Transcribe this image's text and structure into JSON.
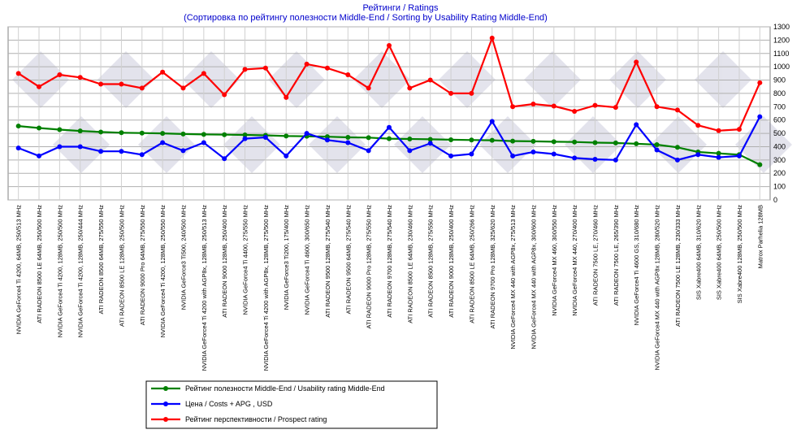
{
  "chart_data": {
    "type": "line",
    "title": "Рейтинги / Ratings",
    "subtitle": "(Сортировка по рейтингу полезности Middle-End / Sorting by Usability Rating Middle-End)",
    "ylim": [
      0,
      1300
    ],
    "yticks": [
      0,
      100,
      200,
      300,
      400,
      500,
      600,
      700,
      800,
      900,
      1000,
      1100,
      1200,
      1300
    ],
    "grid": true,
    "legend_position": "bottom-center",
    "categories": [
      "NVIDIA GeForce4 Ti 4200, 64MB, 250/513 MHz",
      "ATI RADEON 8500 LE 64MB, 250/500 MHz",
      "NVIDIA GeForce4 Ti 4200, 128MB, 250/500 MHz",
      "NVIDIA GeForce4 Ti 4200, 128MB, 250/444 MHz",
      "ATI RADEON 8500 64MB, 275/550 MHz",
      "ATI RADEON 8500 LE 128MB, 250/500 MHz",
      "ATI RADEON 9000 Pro 64MB, 275/550 MHz",
      "NVIDIA GeForce4 Ti 4200, 128MB, 250/550 MHz",
      "NVIDIA GeForce3 Ti500, 240/500 MHz",
      "NVIDIA GeForce4 Ti 4200 with AGP8x, 128MB, 250/513 MHz",
      "ATI RADEON 9000 128MB, 250/400 MHz",
      "NVIDIA GeForce4 Ti 4400, 275/550 MHz",
      "NVIDIA GeForce4 Ti 4200 with AGP8x, 128MB, 275/500 MHz",
      "NVIDIA GeForce3 Ti200, 175/400 MHz",
      "NVIDIA GeForce4 Ti 4600, 300/650 MHz",
      "ATI RADEON 9500 128MB, 275/540 MHz",
      "ATI RADEON 9500 64MB, 275/540 MHz",
      "ATI RADEON 9000 Pro 128MB, 275/550 MHz",
      "ATI RADEON 9700 128MB, 275/540 MHz",
      "ATI RADEON 8500 LE 64MB, 230/460 MHz",
      "ATI RADEON 8500 128MB, 275/550 MHz",
      "ATI RADEON 9000 128MB, 250/400 MHz",
      "ATI RADEON 8500 LE 64MB, 250/266 MHz",
      "ATI RADEON 9700 Pro 128MB, 325/620 MHz",
      "NVIDIA GeForce4 MX 440 with AGP8x, 275/513 MHz",
      "NVIDIA GeForce4 MX 440 with AGP8x, 300/600 MHz",
      "NVIDIA GeForce4 MX 460, 300/550 MHz",
      "NVIDIA GeForce4 MX 440, 270/400 MHz",
      "ATI RADEON 7500 LE, 270/460 MHz",
      "ATI RADEON 7500 LE, 265/390 MHz",
      "NVIDIA GeForce4 Ti 4600 GS, 310/680 MHz",
      "NVIDIA GeForce4 MX 440 with AGP8x 128MB, 280/520 MHz",
      "ATI RADEON 7500 LE 128MB, 230/333 MHz",
      "SIS Xabre400 64MB, 310/620 MHz",
      "SIS Xabre400 64MB, 250/500 MHz",
      "SIS Xabre400 128MB, 250/500 MHz",
      "Matrox Parhelia 128MB"
    ],
    "series": [
      {
        "name": "Рейтинг полезности Middle-End / Usability rating Middle-End",
        "color": "#008000",
        "values": [
          555,
          540,
          528,
          518,
          510,
          505,
          502,
          500,
          495,
          492,
          490,
          488,
          485,
          480,
          478,
          475,
          470,
          468,
          460,
          458,
          455,
          452,
          450,
          448,
          442,
          440,
          437,
          435,
          430,
          428,
          422,
          415,
          395,
          360,
          350,
          340,
          265
        ]
      },
      {
        "name": "Цена / Costs + APG , USD",
        "color": "#0000ff",
        "values": [
          390,
          330,
          400,
          400,
          365,
          365,
          340,
          430,
          370,
          430,
          310,
          460,
          470,
          330,
          500,
          450,
          430,
          370,
          545,
          370,
          425,
          330,
          345,
          590,
          330,
          360,
          345,
          315,
          305,
          300,
          565,
          375,
          300,
          340,
          320,
          330,
          625
        ]
      },
      {
        "name": "Рейтинг перспективности / Prospect rating",
        "color": "#ff0000",
        "values": [
          950,
          850,
          940,
          920,
          870,
          870,
          840,
          960,
          840,
          950,
          790,
          980,
          990,
          770,
          1020,
          990,
          940,
          840,
          1160,
          840,
          900,
          800,
          800,
          1215,
          700,
          720,
          705,
          665,
          710,
          695,
          1035,
          700,
          675,
          560,
          520,
          530,
          880
        ]
      }
    ]
  }
}
